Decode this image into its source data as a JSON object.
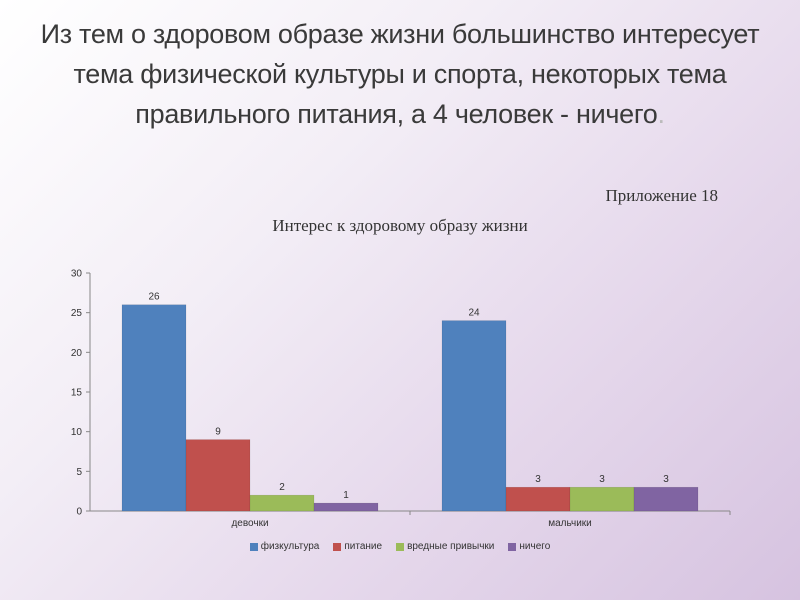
{
  "slide": {
    "title": "Из тем о здоровом образе жизни большинство интересует тема физической культуры и спорта, некоторых тема правильного питания, а 4 человек - ничего",
    "title_end": ".",
    "appendix": "Приложение 18"
  },
  "colors": {
    "физкультура": "#4f81bd",
    "питание": "#c0504d",
    "вредные привычки": "#9bbb59",
    "ничего": "#8064a2"
  },
  "chart_data": {
    "type": "bar",
    "title": "Интерес к здоровому образу жизни",
    "categories": [
      "девочки",
      "мальчики"
    ],
    "series": [
      {
        "name": "физкультура",
        "values": [
          26,
          24
        ]
      },
      {
        "name": "питание",
        "values": [
          9,
          3
        ]
      },
      {
        "name": "вредные привычки",
        "values": [
          2,
          3
        ]
      },
      {
        "name": "ничего",
        "values": [
          1,
          3
        ]
      }
    ],
    "ylim": [
      0,
      30
    ],
    "yticks": [
      0,
      5,
      10,
      15,
      20,
      25,
      30
    ],
    "grid": false,
    "legend": "bottom",
    "data_labels": true
  }
}
